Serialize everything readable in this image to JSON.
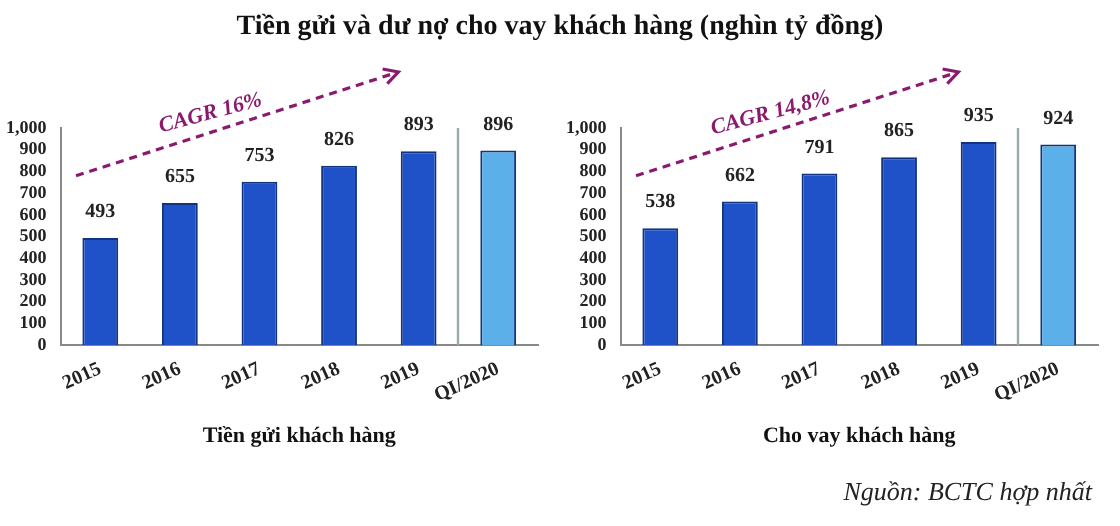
{
  "chart_data": [
    {
      "type": "bar",
      "title": "Tiền gửi và dư nợ cho vay khách hàng (nghìn tỷ đồng)",
      "xlabel": "Tiền gửi khách hàng",
      "categories": [
        "2015",
        "2016",
        "2017",
        "2018",
        "2019",
        "QI/2020"
      ],
      "values": [
        493,
        655,
        753,
        826,
        893,
        896
      ],
      "colors": [
        "#1f52c8",
        "#1f52c8",
        "#1f52c8",
        "#1f52c8",
        "#1f52c8",
        "#5cb0ea"
      ],
      "ylim": [
        0,
        1000
      ],
      "yticks": [
        0,
        100,
        200,
        300,
        400,
        500,
        600,
        700,
        800,
        900,
        {
          "value": 1000,
          "label": "1,000"
        }
      ],
      "grid": false,
      "legend": false,
      "data_labels": true,
      "annotations": [
        "CAGR 16%"
      ]
    },
    {
      "type": "bar",
      "xlabel": "Cho vay khách hàng",
      "categories": [
        "2015",
        "2016",
        "2017",
        "2018",
        "2019",
        "QI/2020"
      ],
      "values": [
        538,
        662,
        791,
        865,
        935,
        924
      ],
      "colors": [
        "#1f52c8",
        "#1f52c8",
        "#1f52c8",
        "#1f52c8",
        "#1f52c8",
        "#5cb0ea"
      ],
      "ylim": [
        0,
        1000
      ],
      "yticks": [
        0,
        100,
        200,
        300,
        400,
        500,
        600,
        700,
        800,
        900,
        {
          "value": 1000,
          "label": "1,000"
        }
      ],
      "grid": false,
      "legend": false,
      "data_labels": true,
      "annotations": [
        "CAGR 14,8%",
        "Nguồn: BCTC hợp nhất"
      ]
    }
  ]
}
